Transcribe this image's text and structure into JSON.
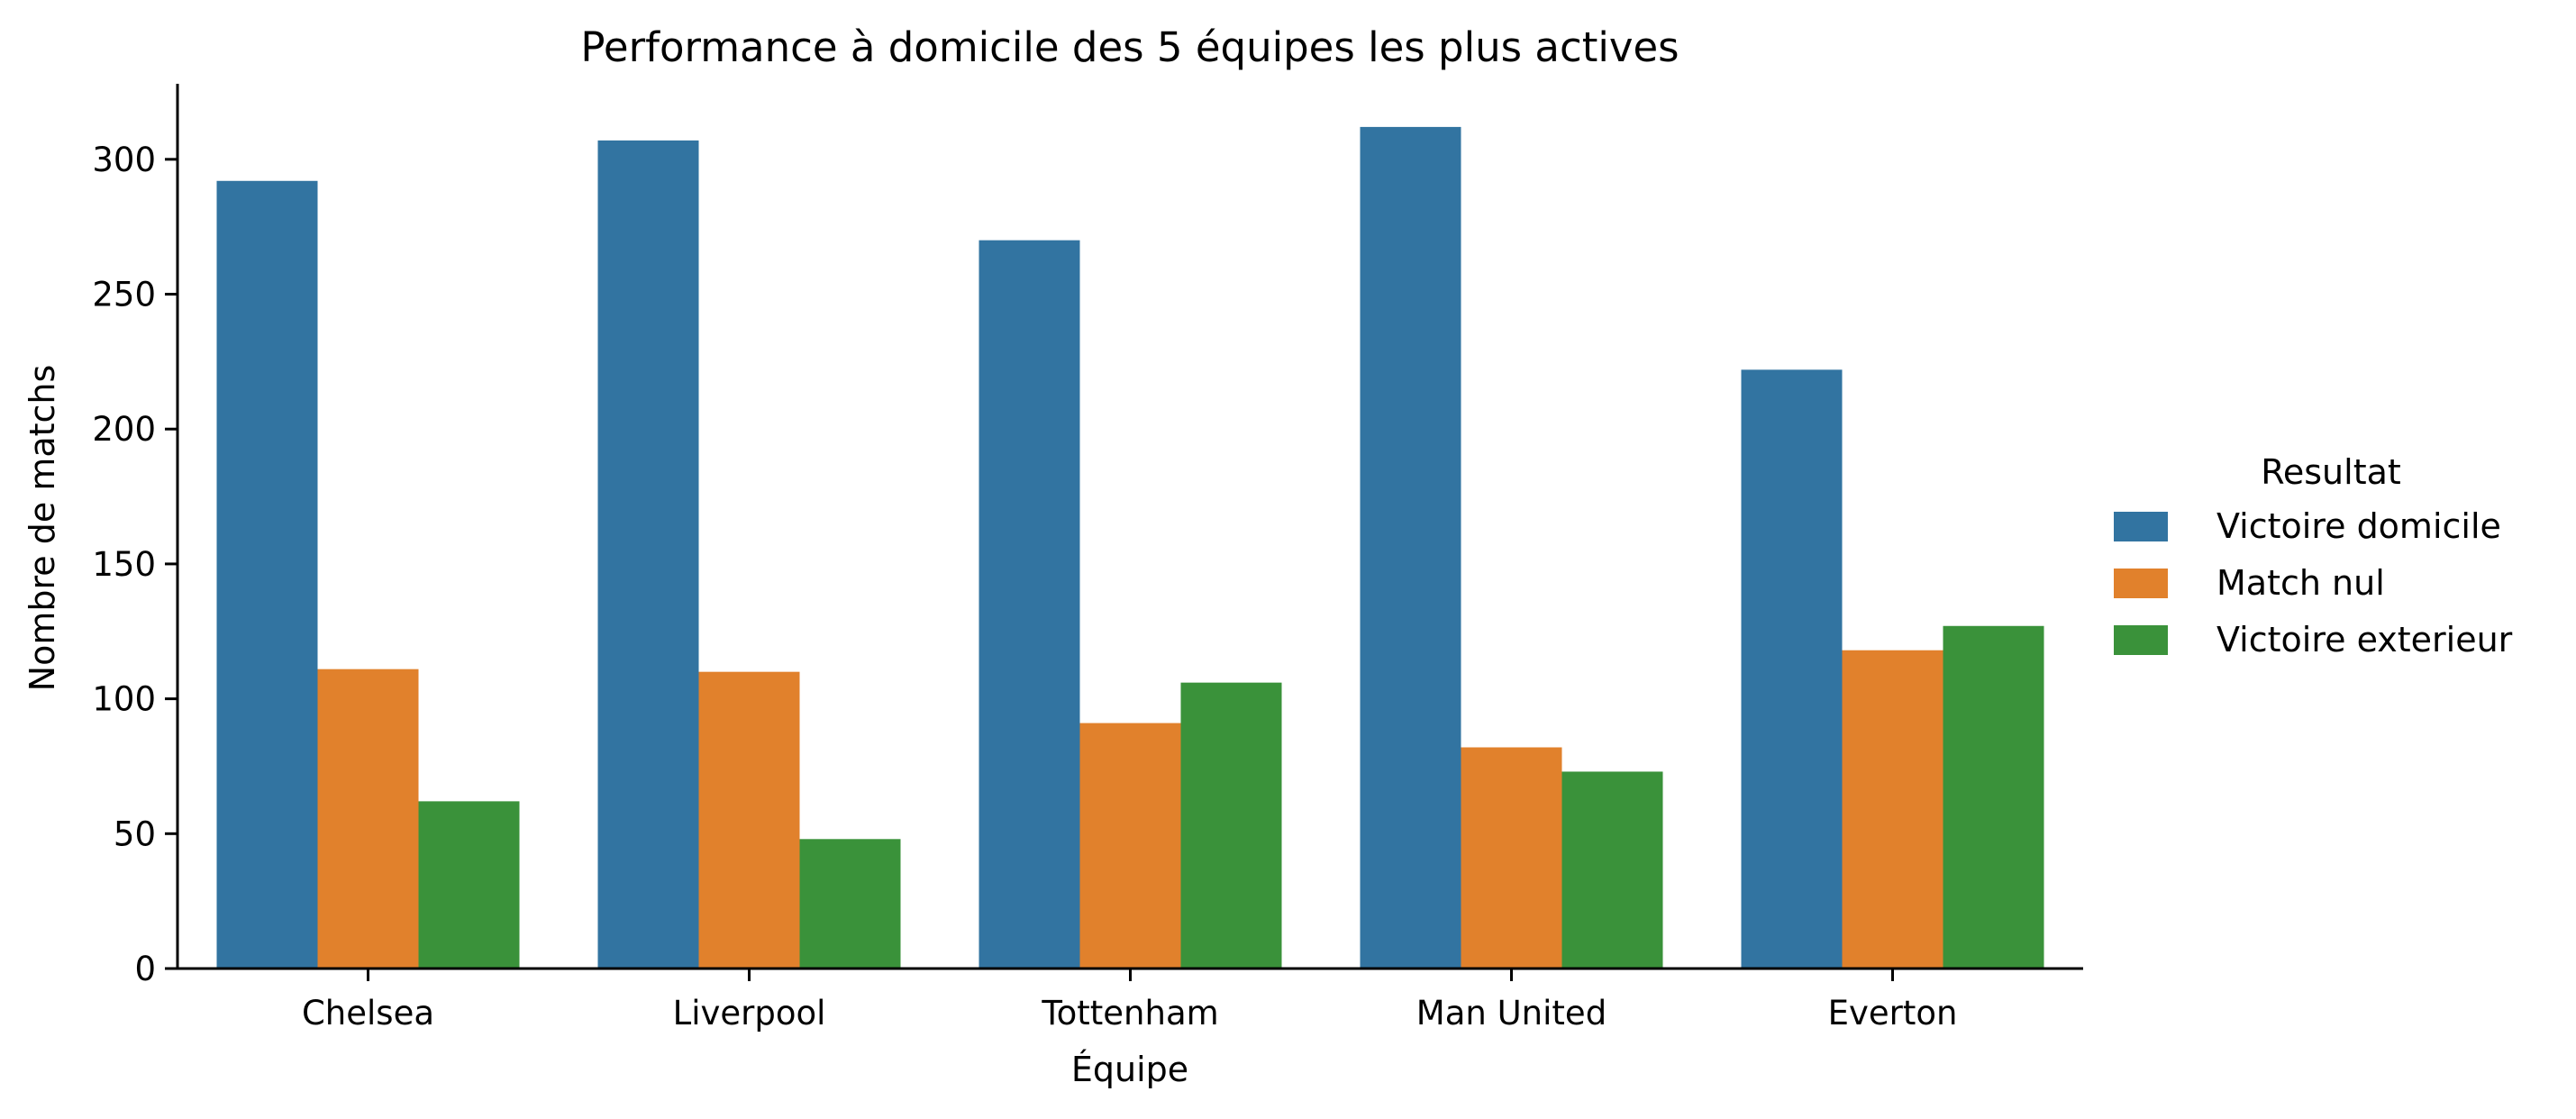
{
  "chart_data": {
    "type": "bar",
    "title": "Performance à domicile des 5 équipes les plus actives",
    "xlabel": "Équipe",
    "ylabel": "Nombre de matchs",
    "categories": [
      "Chelsea",
      "Liverpool",
      "Tottenham",
      "Man United",
      "Everton"
    ],
    "series": [
      {
        "name": "Victoire domicile",
        "color": "#3274a1",
        "values": [
          292,
          307,
          270,
          312,
          222
        ]
      },
      {
        "name": "Match nul",
        "color": "#e1812c",
        "values": [
          111,
          110,
          91,
          82,
          118
        ]
      },
      {
        "name": "Victoire exterieur",
        "color": "#3a923a",
        "values": [
          62,
          48,
          106,
          73,
          127
        ]
      }
    ],
    "ylim": [
      0,
      328
    ],
    "yticks": [
      0,
      50,
      100,
      150,
      200,
      250,
      300
    ],
    "grid": false,
    "legend": {
      "title": "Resultat",
      "placement": "right"
    }
  }
}
